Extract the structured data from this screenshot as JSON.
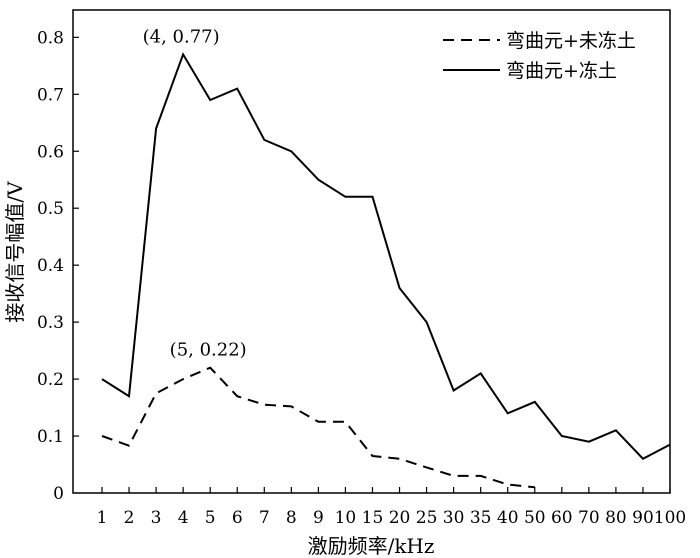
{
  "chart_data": {
    "type": "line",
    "title": "",
    "xlabel": "激励频率/kHz",
    "ylabel": "接收信号幅值/V",
    "categories": [
      "1",
      "2",
      "3",
      "4",
      "5",
      "6",
      "7",
      "8",
      "9",
      "10",
      "15",
      "20",
      "25",
      "30",
      "35",
      "40",
      "50",
      "60",
      "70",
      "80",
      "90",
      "100"
    ],
    "ylim": [
      0,
      0.85
    ],
    "yticks": [
      0,
      0.1,
      0.2,
      0.3,
      0.4,
      0.5,
      0.6,
      0.7,
      0.8
    ],
    "ytick_labels": [
      "0",
      "0.1",
      "0.2",
      "0.3",
      "0.4",
      "0.5",
      "0.6",
      "0.7",
      "0.8"
    ],
    "legend_position": "top-right",
    "grid": false,
    "series": [
      {
        "name": "弯曲元+未冻土",
        "style": "dashed",
        "color": "#000000",
        "x": [
          "1",
          "2",
          "3",
          "4",
          "5",
          "6",
          "7",
          "8",
          "9",
          "10",
          "15",
          "20",
          "25",
          "30",
          "35",
          "40",
          "50"
        ],
        "values": [
          0.1,
          0.083,
          0.175,
          0.2,
          0.22,
          0.17,
          0.155,
          0.152,
          0.125,
          0.125,
          0.065,
          0.06,
          0.045,
          0.03,
          0.03,
          0.015,
          0.01
        ]
      },
      {
        "name": "弯曲元+冻土",
        "style": "solid",
        "color": "#000000",
        "x": [
          "1",
          "2",
          "3",
          "4",
          "5",
          "6",
          "7",
          "8",
          "9",
          "10",
          "15",
          "20",
          "25",
          "30",
          "35",
          "40",
          "50",
          "60",
          "70",
          "80",
          "90",
          "100"
        ],
        "values": [
          0.2,
          0.17,
          0.64,
          0.77,
          0.69,
          0.71,
          0.62,
          0.6,
          0.55,
          0.52,
          0.52,
          0.36,
          0.3,
          0.18,
          0.21,
          0.14,
          0.16,
          0.1,
          0.09,
          0.11,
          0.06,
          0.085
        ]
      }
    ],
    "annotations": [
      {
        "text": "(4, 0.77)",
        "x": "4",
        "y": 0.77
      },
      {
        "text": "(5, 0.22)",
        "x": "5",
        "y": 0.22
      }
    ]
  }
}
